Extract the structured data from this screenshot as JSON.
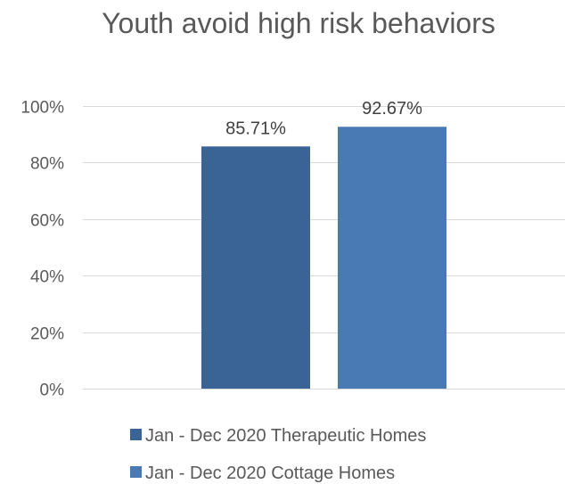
{
  "chart_data": {
    "type": "bar",
    "title": "Youth avoid high risk behaviors",
    "xlabel": "",
    "ylabel": "",
    "ylim": [
      0,
      100
    ],
    "yticks": [
      0,
      20,
      40,
      60,
      80,
      100
    ],
    "ytick_suffix": "%",
    "grid": true,
    "legend_position": "bottom",
    "categories": [
      ""
    ],
    "series": [
      {
        "name": "Jan - Dec 2020 Therapeutic Homes",
        "values": [
          85.71
        ],
        "label": "85.71%",
        "color": "#3a6496"
      },
      {
        "name": "Jan - Dec 2020 Cottage Homes",
        "values": [
          92.67
        ],
        "label": "92.67%",
        "color": "#4a7ab3"
      }
    ]
  }
}
